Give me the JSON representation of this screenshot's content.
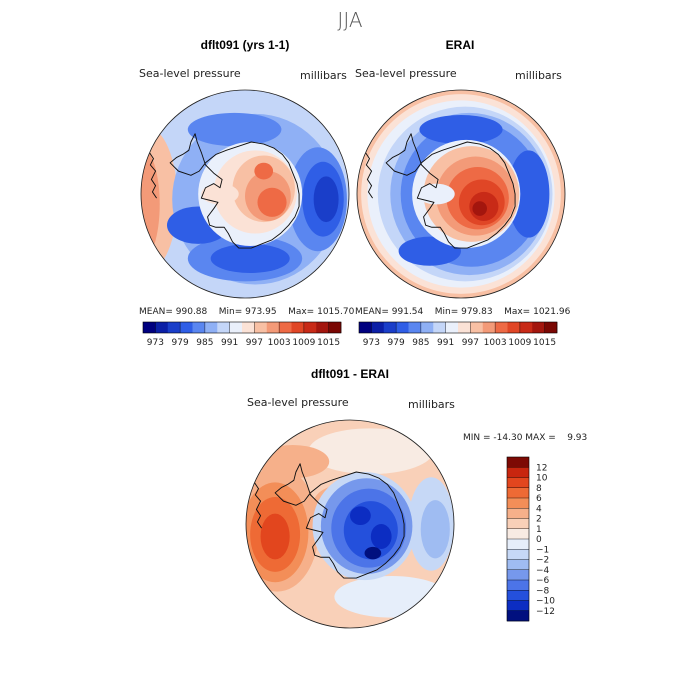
{
  "page_title": "JJA",
  "chart_data": [
    {
      "type": "contour-map",
      "projection": "south-polar-stereographic",
      "title": "dflt091 (yrs 1-1)",
      "variable_label": "Sea-level pressure",
      "units": "millibars",
      "stats": {
        "mean": "990.88",
        "min": "973.95",
        "max": "1015.70"
      },
      "colorbar_levels": [
        "973",
        "979",
        "985",
        "991",
        "997",
        "1003",
        "1009",
        "1015"
      ],
      "colors": [
        "#00007f",
        "#0b1fa6",
        "#1a3ec9",
        "#2f5ee6",
        "#5a86f0",
        "#8fb0f5",
        "#c4d6f8",
        "#eaf0fb",
        "#fbe2d6",
        "#f8c0a4",
        "#f39a78",
        "#ee6a45",
        "#e04626",
        "#c82a17",
        "#a3160e",
        "#7a0703"
      ]
    },
    {
      "type": "contour-map",
      "projection": "south-polar-stereographic",
      "title": "ERAI",
      "variable_label": "Sea-level pressure",
      "units": "millibars",
      "stats": {
        "mean": "991.54",
        "min": "979.83",
        "max": "1021.96"
      },
      "colorbar_levels": [
        "973",
        "979",
        "985",
        "991",
        "997",
        "1003",
        "1009",
        "1015"
      ]
    },
    {
      "type": "contour-map",
      "projection": "south-polar-stereographic",
      "title": "dflt091 - ERAI",
      "variable_label": "Sea-level pressure",
      "units": "millibars",
      "stats": {
        "min": "-14.30",
        "max": "9.93"
      },
      "stats_text": "MIN = -14.30 MAX =    9.93",
      "colorbar_levels": [
        "12",
        "10",
        "8",
        "6",
        "4",
        "2",
        "1",
        "0",
        "-1",
        "-2",
        "-4",
        "-6",
        "-8",
        "-10",
        "-12"
      ],
      "colors": [
        "#7d0a04",
        "#c8260f",
        "#e2461e",
        "#ee6a35",
        "#f38e58",
        "#f6b08a",
        "#f9d0b8",
        "#f8ebe3",
        "#e6eefa",
        "#c6d8f6",
        "#9fbcf2",
        "#7698ec",
        "#4c74e8",
        "#2450dc",
        "#0c2dc2",
        "#01107f"
      ]
    }
  ]
}
